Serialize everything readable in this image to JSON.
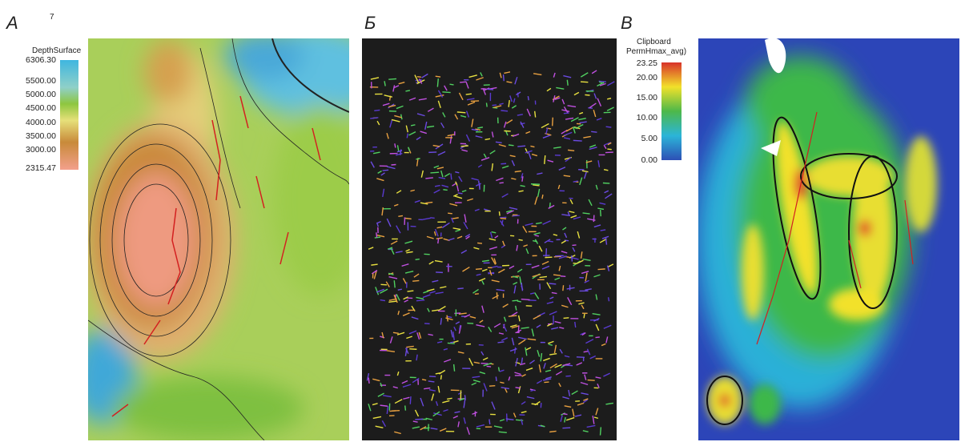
{
  "panels": [
    {
      "label": "А",
      "legend": {
        "title": [
          "7",
          "DepthSurface"
        ],
        "ticks": [
          "6306.30",
          "5500.00",
          "5000.00",
          "4500.00",
          "4000.00",
          "3500.00",
          "3000.00",
          "2315.47"
        ]
      }
    },
    {
      "label": "Б"
    },
    {
      "label": "В",
      "legend": {
        "title": [
          "Clipboard",
          "PermHmax_avg)"
        ],
        "ticks": [
          "23.25",
          "20.00",
          "15.00",
          "10.00",
          "5.00",
          "0.00"
        ]
      }
    }
  ]
}
